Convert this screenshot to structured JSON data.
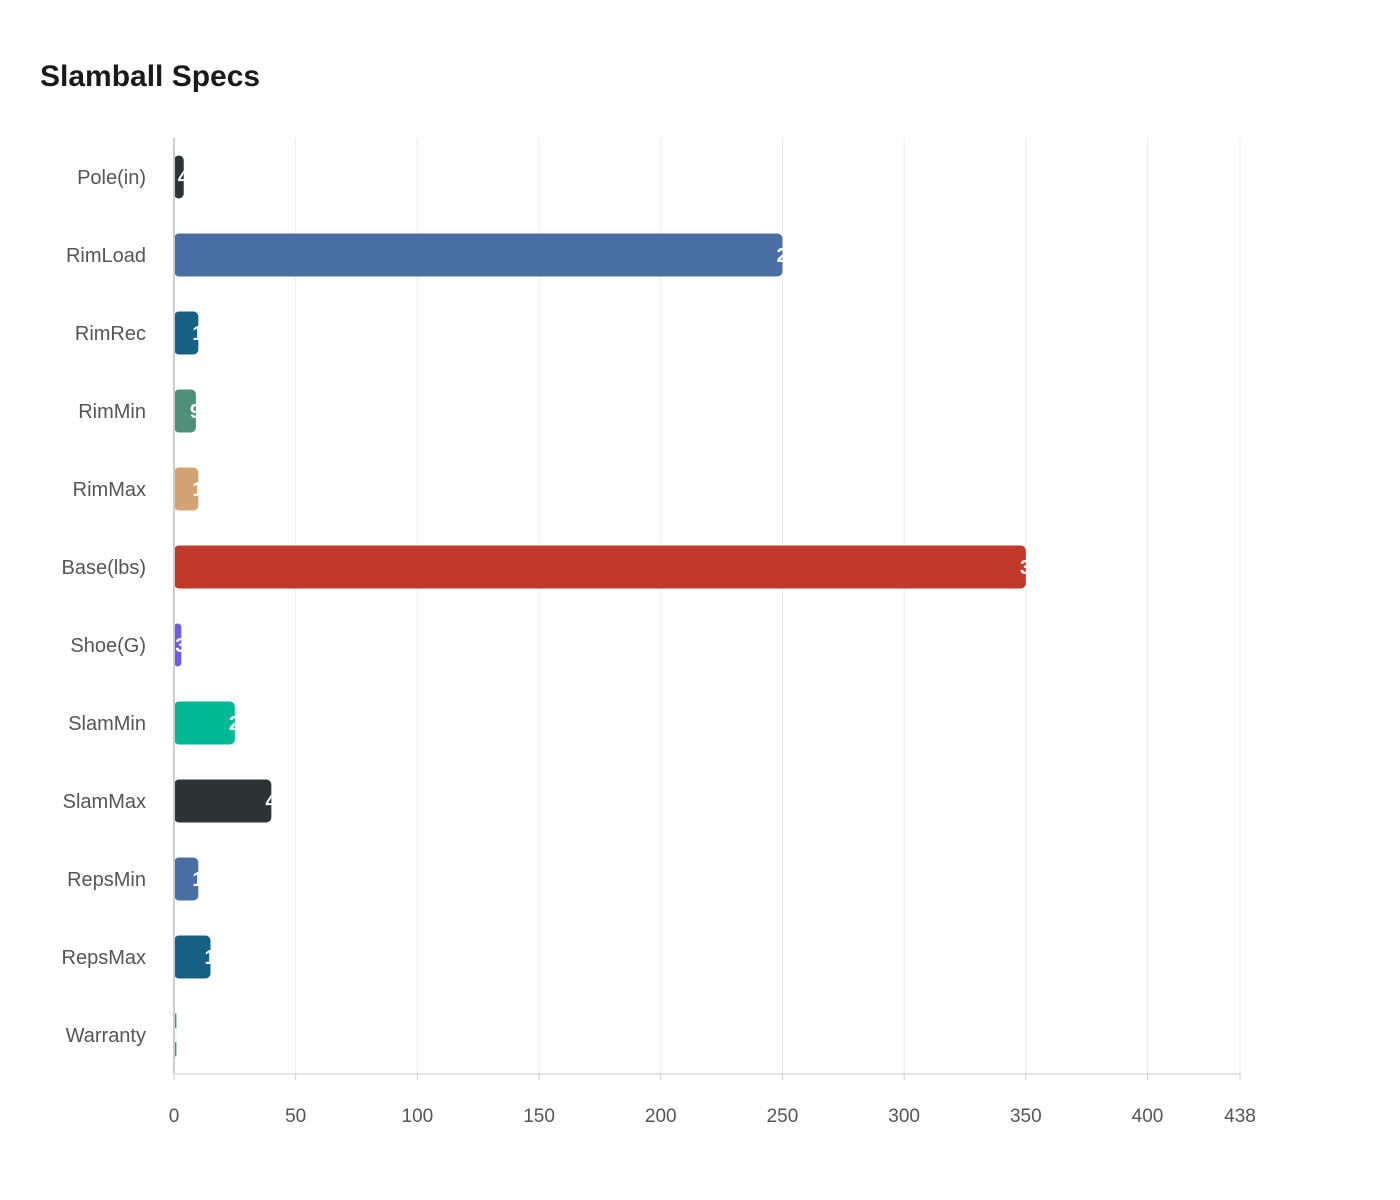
{
  "chart_data": {
    "type": "bar",
    "orientation": "horizontal",
    "title": "Slamball Specs",
    "categories": [
      "Pole(in)",
      "RimLoad",
      "RimRec",
      "RimMin",
      "RimMax",
      "Base(lbs)",
      "Shoe(G)",
      "SlamMin",
      "SlamMax",
      "RepsMin",
      "RepsMax",
      "Warranty"
    ],
    "values": [
      4,
      250,
      10,
      9,
      10,
      350,
      3,
      25,
      40,
      10,
      15,
      1
    ],
    "colors": [
      "#2d3436",
      "#4a6fa5",
      "#166084",
      "#4f8f7a",
      "#d4a373",
      "#c0392b",
      "#6c5ce7",
      "#00b894",
      "#2d3436",
      "#4a6fa5",
      "#166084",
      "#4f8f7a"
    ],
    "xticks": [
      0,
      50,
      100,
      150,
      200,
      250,
      300,
      350,
      400,
      438
    ],
    "xlim": [
      0,
      438
    ],
    "grid": "vertical",
    "legend": "none"
  }
}
